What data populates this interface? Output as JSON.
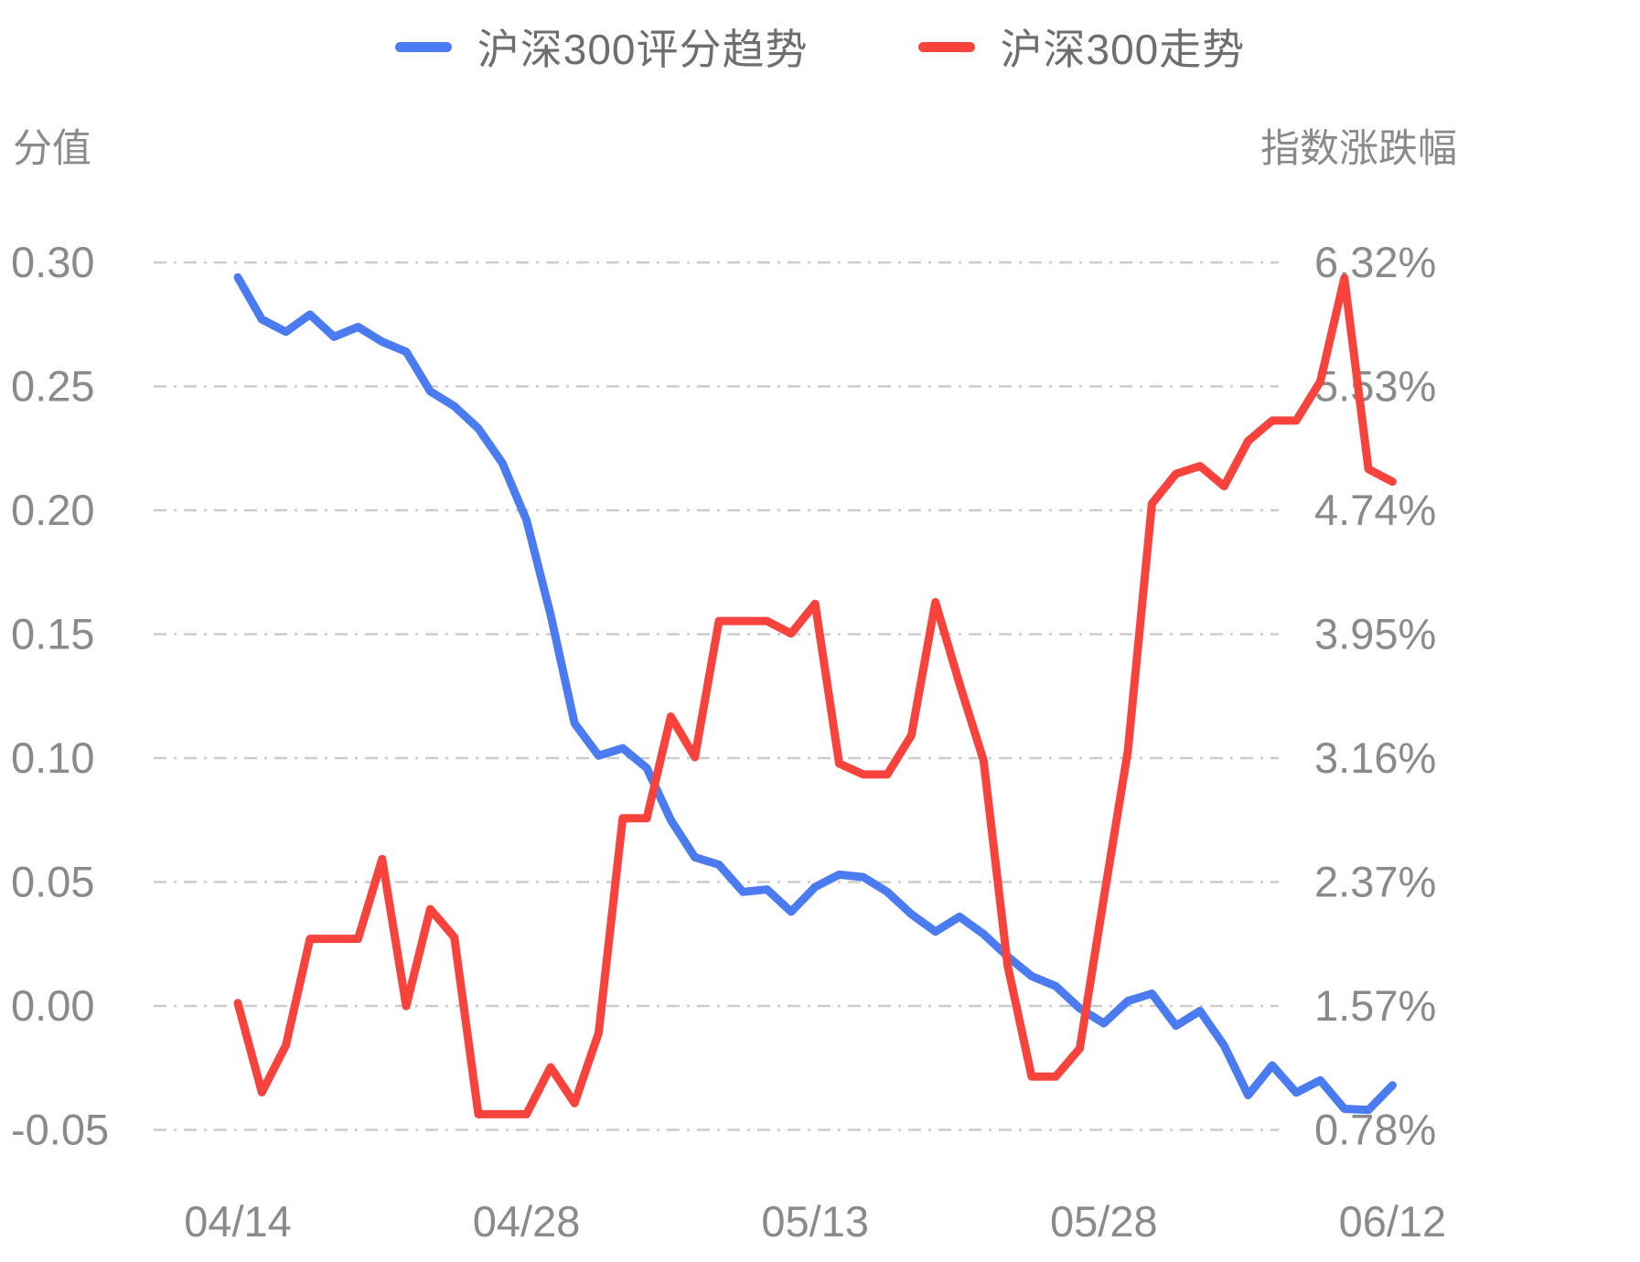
{
  "legend": {
    "items": [
      {
        "id": "score-trend",
        "label": "沪深300评分趋势",
        "color": "#4a7bf0"
      },
      {
        "id": "index-change",
        "label": "沪深300走势",
        "color": "#f8433c"
      }
    ]
  },
  "left_axis": {
    "title": "分值",
    "ticks": [
      {
        "label": "0.30",
        "value": 0.3
      },
      {
        "label": "0.25",
        "value": 0.25
      },
      {
        "label": "0.20",
        "value": 0.2
      },
      {
        "label": "0.15",
        "value": 0.15
      },
      {
        "label": "0.10",
        "value": 0.1
      },
      {
        "label": "0.05",
        "value": 0.05
      },
      {
        "label": "0.00",
        "value": 0.0
      },
      {
        "label": "-0.05",
        "value": -0.05
      }
    ]
  },
  "right_axis": {
    "title": "指数涨跌幅",
    "ticks": [
      {
        "label": "6.32%",
        "value": 6.32
      },
      {
        "label": "5.53%",
        "value": 5.53
      },
      {
        "label": "4.74%",
        "value": 4.74
      },
      {
        "label": "3.95%",
        "value": 3.95
      },
      {
        "label": "3.16%",
        "value": 3.16
      },
      {
        "label": "2.37%",
        "value": 2.37
      },
      {
        "label": "1.57%",
        "value": 1.57
      },
      {
        "label": "0.78%",
        "value": 0.78
      }
    ]
  },
  "x_axis": {
    "ticks": [
      {
        "label": "04/14",
        "index": 0
      },
      {
        "label": "04/28",
        "index": 12
      },
      {
        "label": "05/13",
        "index": 24
      },
      {
        "label": "05/28",
        "index": 36
      },
      {
        "label": "06/12",
        "index": 48
      }
    ]
  },
  "chart_data": {
    "type": "line",
    "n_points": 49,
    "x_tick_labels": [
      "04/14",
      "04/28",
      "05/13",
      "05/28",
      "06/12"
    ],
    "x_tick_indices": [
      0,
      12,
      24,
      36,
      48
    ],
    "left_ylabel": "分值",
    "right_ylabel": "指数涨跌幅",
    "left_ylim": [
      -0.05,
      0.3
    ],
    "right_ylim": [
      0.78,
      6.32
    ],
    "grid": "horizontal dash-dot",
    "legend_position": "top-center",
    "series": [
      {
        "name": "沪深300评分趋势",
        "axis": "left",
        "color": "#4a7bf0",
        "values": [
          0.294,
          0.277,
          0.272,
          0.279,
          0.27,
          0.274,
          0.268,
          0.264,
          0.248,
          0.242,
          0.233,
          0.219,
          0.196,
          0.158,
          0.114,
          0.101,
          0.104,
          0.096,
          0.075,
          0.06,
          0.057,
          0.046,
          0.047,
          0.038,
          0.048,
          0.053,
          0.052,
          0.046,
          0.037,
          0.03,
          0.036,
          0.029,
          0.02,
          0.012,
          0.008,
          -0.001,
          -0.007,
          0.002,
          0.005,
          -0.008,
          -0.002,
          -0.016,
          -0.036,
          -0.024,
          -0.035,
          -0.03,
          -0.0415,
          -0.042,
          -0.032
        ]
      },
      {
        "name": "沪深300走势",
        "axis": "right",
        "color": "#f8433c",
        "values": [
          1.59,
          1.02,
          1.32,
          2.0,
          2.0,
          2.0,
          2.51,
          1.57,
          2.19,
          2.01,
          0.88,
          0.88,
          0.88,
          1.18,
          0.95,
          1.4,
          2.77,
          2.77,
          3.42,
          3.16,
          4.03,
          4.03,
          4.03,
          3.95,
          4.14,
          3.12,
          3.05,
          3.05,
          3.3,
          4.15,
          3.63,
          3.14,
          1.83,
          1.12,
          1.12,
          1.3,
          2.26,
          3.2,
          4.78,
          4.97,
          5.02,
          4.89,
          5.18,
          5.31,
          5.31,
          5.56,
          6.22,
          5.0,
          4.92
        ]
      }
    ]
  }
}
